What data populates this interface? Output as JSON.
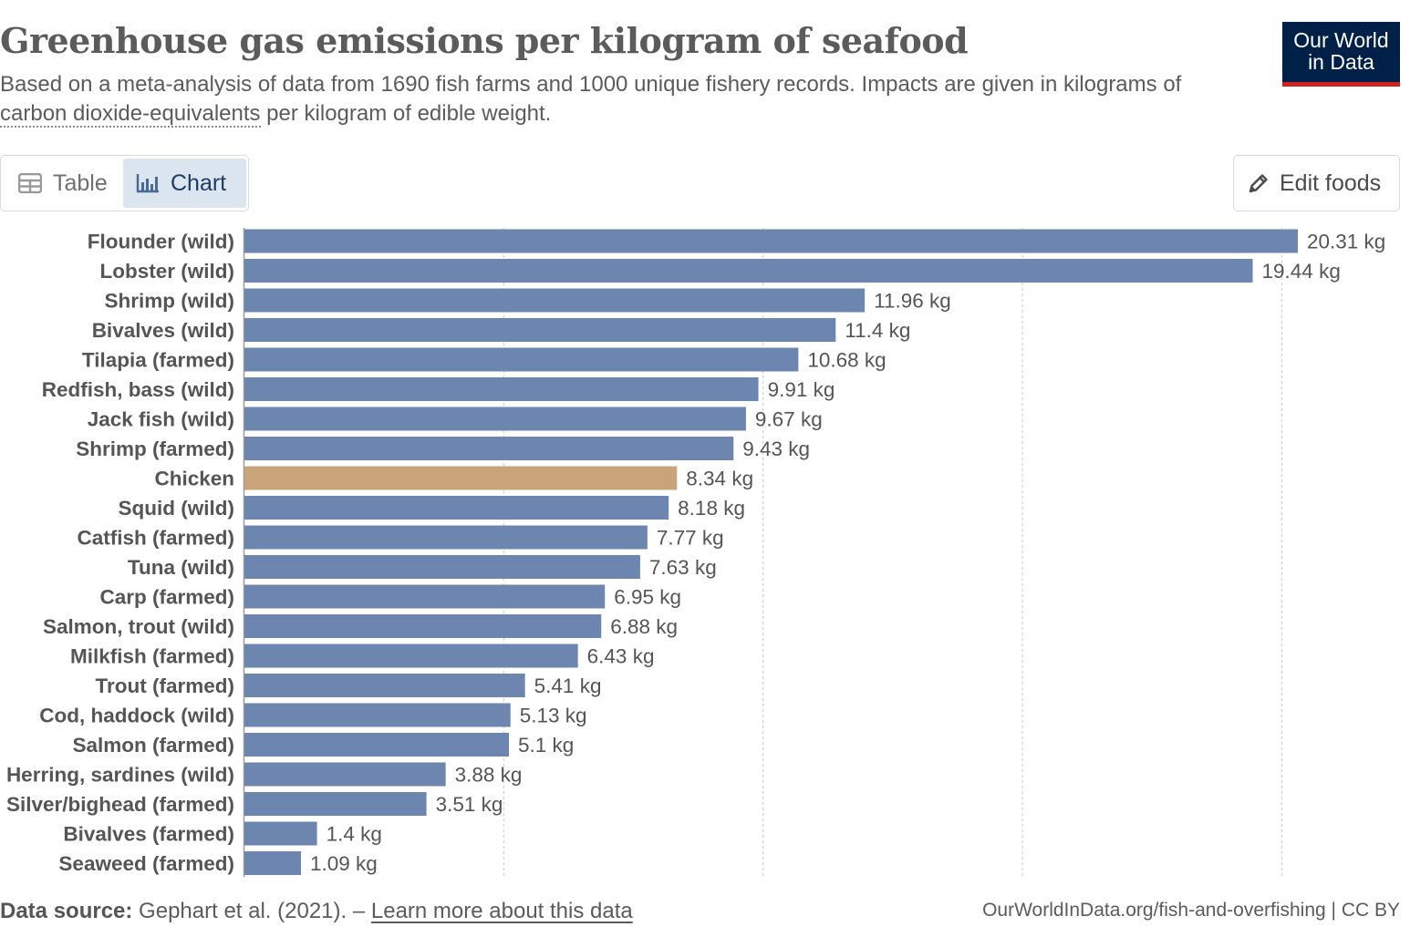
{
  "header": {
    "title": "Greenhouse gas emissions per kilogram of seafood",
    "subtitle_part1": "Based on a meta-analysis of data from 1690 fish farms and 1000 unique fishery records. Impacts are given in kilograms of ",
    "subtitle_link": "carbon dioxide-equivalents",
    "subtitle_part2": " per kilogram of edible weight."
  },
  "logo": {
    "line1": "Our World",
    "line2": "in Data"
  },
  "tabs": [
    {
      "label": "Table",
      "icon": "table-icon",
      "active": false
    },
    {
      "label": "Chart",
      "icon": "bar-chart-icon",
      "active": true
    }
  ],
  "edit_button": {
    "label": "Edit foods",
    "icon": "pencil-icon"
  },
  "footer": {
    "source_label": "Data source:",
    "source_text": " Gephart et al. (2021). – ",
    "learn_more": "Learn more about this data",
    "attribution": "OurWorldInData.org/fish-and-overfishing | CC BY"
  },
  "colors": {
    "bar": "#6d86b0",
    "highlight": "#c9a47b",
    "grid": "#d0d0d0",
    "logo_bg": "#002147",
    "logo_accent": "#ce261e"
  },
  "chart_data": {
    "type": "bar",
    "orientation": "horizontal",
    "unit": "kg",
    "xlim": [
      0,
      20.31
    ],
    "grid": true,
    "categories": [
      "Flounder (wild)",
      "Lobster (wild)",
      "Shrimp (wild)",
      "Bivalves (wild)",
      "Tilapia (farmed)",
      "Redfish, bass (wild)",
      "Jack fish (wild)",
      "Shrimp (farmed)",
      "Chicken",
      "Squid (wild)",
      "Catfish (farmed)",
      "Tuna (wild)",
      "Carp (farmed)",
      "Salmon, trout (wild)",
      "Milkfish (farmed)",
      "Trout (farmed)",
      "Cod, haddock (wild)",
      "Salmon (farmed)",
      "Herring, sardines (wild)",
      "Silver/bighead (farmed)",
      "Bivalves (farmed)",
      "Seaweed (farmed)"
    ],
    "values": [
      20.31,
      19.44,
      11.96,
      11.4,
      10.68,
      9.91,
      9.67,
      9.43,
      8.34,
      8.18,
      7.77,
      7.63,
      6.95,
      6.88,
      6.43,
      5.41,
      5.13,
      5.1,
      3.88,
      3.51,
      1.4,
      1.09
    ],
    "value_labels": [
      "20.31 kg",
      "19.44 kg",
      "11.96 kg",
      "11.4 kg",
      "10.68 kg",
      "9.91 kg",
      "9.67 kg",
      "9.43 kg",
      "8.34 kg",
      "8.18 kg",
      "7.77 kg",
      "7.63 kg",
      "6.95 kg",
      "6.88 kg",
      "6.43 kg",
      "5.41 kg",
      "5.13 kg",
      "5.1 kg",
      "3.88 kg",
      "3.51 kg",
      "1.4 kg",
      "1.09 kg"
    ],
    "highlighted": [
      "Chicken"
    ],
    "gridlines": [
      5,
      10,
      15,
      20
    ]
  }
}
